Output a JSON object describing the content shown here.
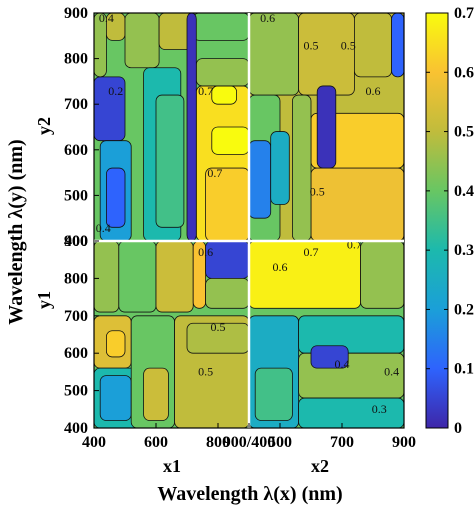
{
  "chart_data": {
    "type": "heatmap",
    "xlabel": "Wavelength λ(x) (nm)",
    "ylabel": "Wavelength λ(y) (nm)",
    "x_ticks": [
      "400",
      "600",
      "800",
      "900/400",
      "500",
      "700",
      "900"
    ],
    "y_ticks_top": [
      "900",
      "800",
      "700",
      "600",
      "500",
      "400"
    ],
    "y_ticks_bottom": [
      "900",
      "800",
      "700",
      "600",
      "500",
      "400"
    ],
    "x_block_labels": [
      "x1",
      "x2"
    ],
    "y_block_labels": [
      "y2",
      "y1"
    ],
    "colorbar": {
      "ticks": [
        "0",
        "0.1",
        "0.2",
        "0.3",
        "0.4",
        "0.5",
        "0.6",
        "0.7"
      ],
      "min": 0,
      "max": 0.7,
      "colormap": [
        "#3e26a8",
        "#2e63fd",
        "#1b9fd8",
        "#1cb9ad",
        "#68c663",
        "#c0bc3c",
        "#f9c232",
        "#f9fb0e"
      ]
    },
    "blocks": [
      {
        "row": "y2",
        "col": "x1",
        "regions": [
          {
            "x": [
              400,
              900
            ],
            "y": [
              400,
              900
            ],
            "value": 0.4
          },
          {
            "x": [
              400,
              500
            ],
            "y": [
              620,
              760
            ],
            "value": 0.05
          },
          {
            "x": [
              420,
              520
            ],
            "y": [
              400,
              620
            ],
            "value": 0.2
          },
          {
            "x": [
              440,
              500
            ],
            "y": [
              430,
              560
            ],
            "value": 0.1
          },
          {
            "x": [
              400,
              440
            ],
            "y": [
              760,
              900
            ],
            "value": 0.45
          },
          {
            "x": [
              440,
              500
            ],
            "y": [
              840,
              900
            ],
            "value": 0.5
          },
          {
            "x": [
              500,
              610
            ],
            "y": [
              780,
              900
            ],
            "value": 0.45
          },
          {
            "x": [
              610,
              720
            ],
            "y": [
              820,
              900
            ],
            "value": 0.5
          },
          {
            "x": [
              720,
              900
            ],
            "y": [
              840,
              900
            ],
            "value": 0.4
          },
          {
            "x": [
              560,
              680
            ],
            "y": [
              400,
              780
            ],
            "value": 0.3
          },
          {
            "x": [
              600,
              690
            ],
            "y": [
              430,
              720
            ],
            "value": 0.35
          },
          {
            "x": [
              730,
              900
            ],
            "y": [
              400,
              740
            ],
            "value": 0.65
          },
          {
            "x": [
              760,
              900
            ],
            "y": [
              400,
              560
            ],
            "value": 0.62
          },
          {
            "x": [
              780,
              900
            ],
            "y": [
              590,
              650
            ],
            "value": 0.7
          },
          {
            "x": [
              780,
              860
            ],
            "y": [
              700,
              740
            ],
            "value": 0.7
          },
          {
            "x": [
              730,
              900
            ],
            "y": [
              740,
              800
            ],
            "value": 0.45
          },
          {
            "x": [
              700,
              730
            ],
            "y": [
              400,
              900
            ],
            "value": 0.02
          }
        ]
      },
      {
        "row": "y2",
        "col": "x2",
        "regions": [
          {
            "x": [
              400,
              900
            ],
            "y": [
              400,
              900
            ],
            "value": 0.5
          },
          {
            "x": [
              400,
              500
            ],
            "y": [
              400,
              720
            ],
            "value": 0.4
          },
          {
            "x": [
              400,
              470
            ],
            "y": [
              450,
              620
            ],
            "value": 0.15
          },
          {
            "x": [
              470,
              530
            ],
            "y": [
              480,
              640
            ],
            "value": 0.25
          },
          {
            "x": [
              400,
              560
            ],
            "y": [
              720,
              900
            ],
            "value": 0.45
          },
          {
            "x": [
              560,
              740
            ],
            "y": [
              720,
              900
            ],
            "value": 0.52
          },
          {
            "x": [
              740,
              860
            ],
            "y": [
              760,
              900
            ],
            "value": 0.5
          },
          {
            "x": [
              860,
              900
            ],
            "y": [
              760,
              900
            ],
            "value": 0.1
          },
          {
            "x": [
              600,
              900
            ],
            "y": [
              400,
              560
            ],
            "value": 0.58
          },
          {
            "x": [
              600,
              900
            ],
            "y": [
              560,
              680
            ],
            "value": 0.62
          },
          {
            "x": [
              540,
              600
            ],
            "y": [
              400,
              720
            ],
            "value": 0.45
          },
          {
            "x": [
              620,
              680
            ],
            "y": [
              560,
              740
            ],
            "value": 0.02
          }
        ]
      },
      {
        "row": "y1",
        "col": "x1",
        "regions": [
          {
            "x": [
              400,
              900
            ],
            "y": [
              400,
              900
            ],
            "value": 0.4
          },
          {
            "x": [
              400,
              480
            ],
            "y": [
              710,
              900
            ],
            "value": 0.45
          },
          {
            "x": [
              480,
              600
            ],
            "y": [
              710,
              900
            ],
            "value": 0.4
          },
          {
            "x": [
              600,
              720
            ],
            "y": [
              710,
              900
            ],
            "value": 0.52
          },
          {
            "x": [
              720,
              760
            ],
            "y": [
              720,
              900
            ],
            "value": 0.6
          },
          {
            "x": [
              760,
              900
            ],
            "y": [
              800,
              900
            ],
            "value": 0.05
          },
          {
            "x": [
              760,
              900
            ],
            "y": [
              720,
              800
            ],
            "value": 0.45
          },
          {
            "x": [
              400,
              520
            ],
            "y": [
              560,
              700
            ],
            "value": 0.55
          },
          {
            "x": [
              440,
              500
            ],
            "y": [
              590,
              660
            ],
            "value": 0.62
          },
          {
            "x": [
              400,
              560
            ],
            "y": [
              400,
              560
            ],
            "value": 0.3
          },
          {
            "x": [
              420,
              520
            ],
            "y": [
              420,
              540
            ],
            "value": 0.2
          },
          {
            "x": [
              520,
              660
            ],
            "y": [
              400,
              700
            ],
            "value": 0.4
          },
          {
            "x": [
              560,
              640
            ],
            "y": [
              420,
              560
            ],
            "value": 0.52
          },
          {
            "x": [
              660,
              900
            ],
            "y": [
              400,
              700
            ],
            "value": 0.5
          },
          {
            "x": [
              700,
              900
            ],
            "y": [
              600,
              680
            ],
            "value": 0.48
          }
        ]
      },
      {
        "row": "y1",
        "col": "x2",
        "regions": [
          {
            "x": [
              400,
              900
            ],
            "y": [
              400,
              900
            ],
            "value": 0.4
          },
          {
            "x": [
              400,
              760
            ],
            "y": [
              720,
              900
            ],
            "value": 0.68
          },
          {
            "x": [
              760,
              900
            ],
            "y": [
              720,
              900
            ],
            "value": 0.45
          },
          {
            "x": [
              400,
              560
            ],
            "y": [
              400,
              700
            ],
            "value": 0.25
          },
          {
            "x": [
              420,
              540
            ],
            "y": [
              420,
              560
            ],
            "value": 0.35
          },
          {
            "x": [
              560,
              900
            ],
            "y": [
              600,
              700
            ],
            "value": 0.3
          },
          {
            "x": [
              560,
              900
            ],
            "y": [
              480,
              600
            ],
            "value": 0.45
          },
          {
            "x": [
              560,
              900
            ],
            "y": [
              400,
              480
            ],
            "value": 0.3
          },
          {
            "x": [
              600,
              720
            ],
            "y": [
              560,
              620
            ],
            "value": 0.05
          }
        ]
      }
    ],
    "contour_labels": [
      {
        "row": "y2",
        "col": "x1",
        "x": 440,
        "y": 880,
        "text": "0.4"
      },
      {
        "row": "y2",
        "col": "x1",
        "x": 470,
        "y": 720,
        "text": "0.2"
      },
      {
        "row": "y2",
        "col": "x1",
        "x": 430,
        "y": 420,
        "text": "0.4"
      },
      {
        "row": "y2",
        "col": "x1",
        "x": 760,
        "y": 720,
        "text": "0.7"
      },
      {
        "row": "y2",
        "col": "x1",
        "x": 790,
        "y": 540,
        "text": "0.7"
      },
      {
        "row": "y2",
        "col": "x2",
        "x": 460,
        "y": 880,
        "text": "0.6"
      },
      {
        "row": "y2",
        "col": "x2",
        "x": 600,
        "y": 820,
        "text": "0.5"
      },
      {
        "row": "y2",
        "col": "x2",
        "x": 720,
        "y": 820,
        "text": "0.5"
      },
      {
        "row": "y2",
        "col": "x2",
        "x": 800,
        "y": 720,
        "text": "0.6"
      },
      {
        "row": "y2",
        "col": "x2",
        "x": 620,
        "y": 500,
        "text": "0.5"
      },
      {
        "row": "y1",
        "col": "x1",
        "x": 760,
        "y": 860,
        "text": "0.6"
      },
      {
        "row": "y1",
        "col": "x1",
        "x": 800,
        "y": 660,
        "text": "0.5"
      },
      {
        "row": "y1",
        "col": "x1",
        "x": 760,
        "y": 540,
        "text": "0.5"
      },
      {
        "row": "y1",
        "col": "x2",
        "x": 500,
        "y": 820,
        "text": "0.6"
      },
      {
        "row": "y1",
        "col": "x2",
        "x": 600,
        "y": 860,
        "text": "0.7"
      },
      {
        "row": "y1",
        "col": "x2",
        "x": 740,
        "y": 880,
        "text": "0.7"
      },
      {
        "row": "y1",
        "col": "x2",
        "x": 700,
        "y": 560,
        "text": "0.4"
      },
      {
        "row": "y1",
        "col": "x2",
        "x": 860,
        "y": 540,
        "text": "0.4"
      },
      {
        "row": "y1",
        "col": "x2",
        "x": 820,
        "y": 440,
        "text": "0.3"
      }
    ]
  }
}
